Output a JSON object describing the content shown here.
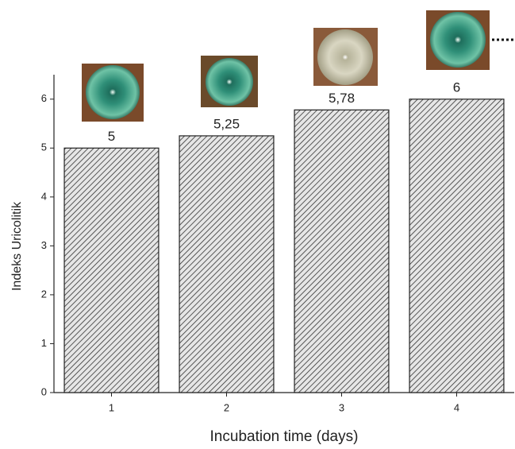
{
  "chart_data": {
    "type": "bar",
    "x_label": "Incubation time (days)",
    "y_label": "Indeks Uricolitik",
    "categories": [
      "1",
      "2",
      "3",
      "4"
    ],
    "values": [
      5,
      5.25,
      5.78,
      6
    ],
    "value_labels": [
      "5",
      "5,25",
      "5,78",
      "6"
    ],
    "ylim": [
      0,
      6.5
    ],
    "yticks": [
      0,
      1,
      2,
      3,
      4,
      5,
      6
    ]
  }
}
